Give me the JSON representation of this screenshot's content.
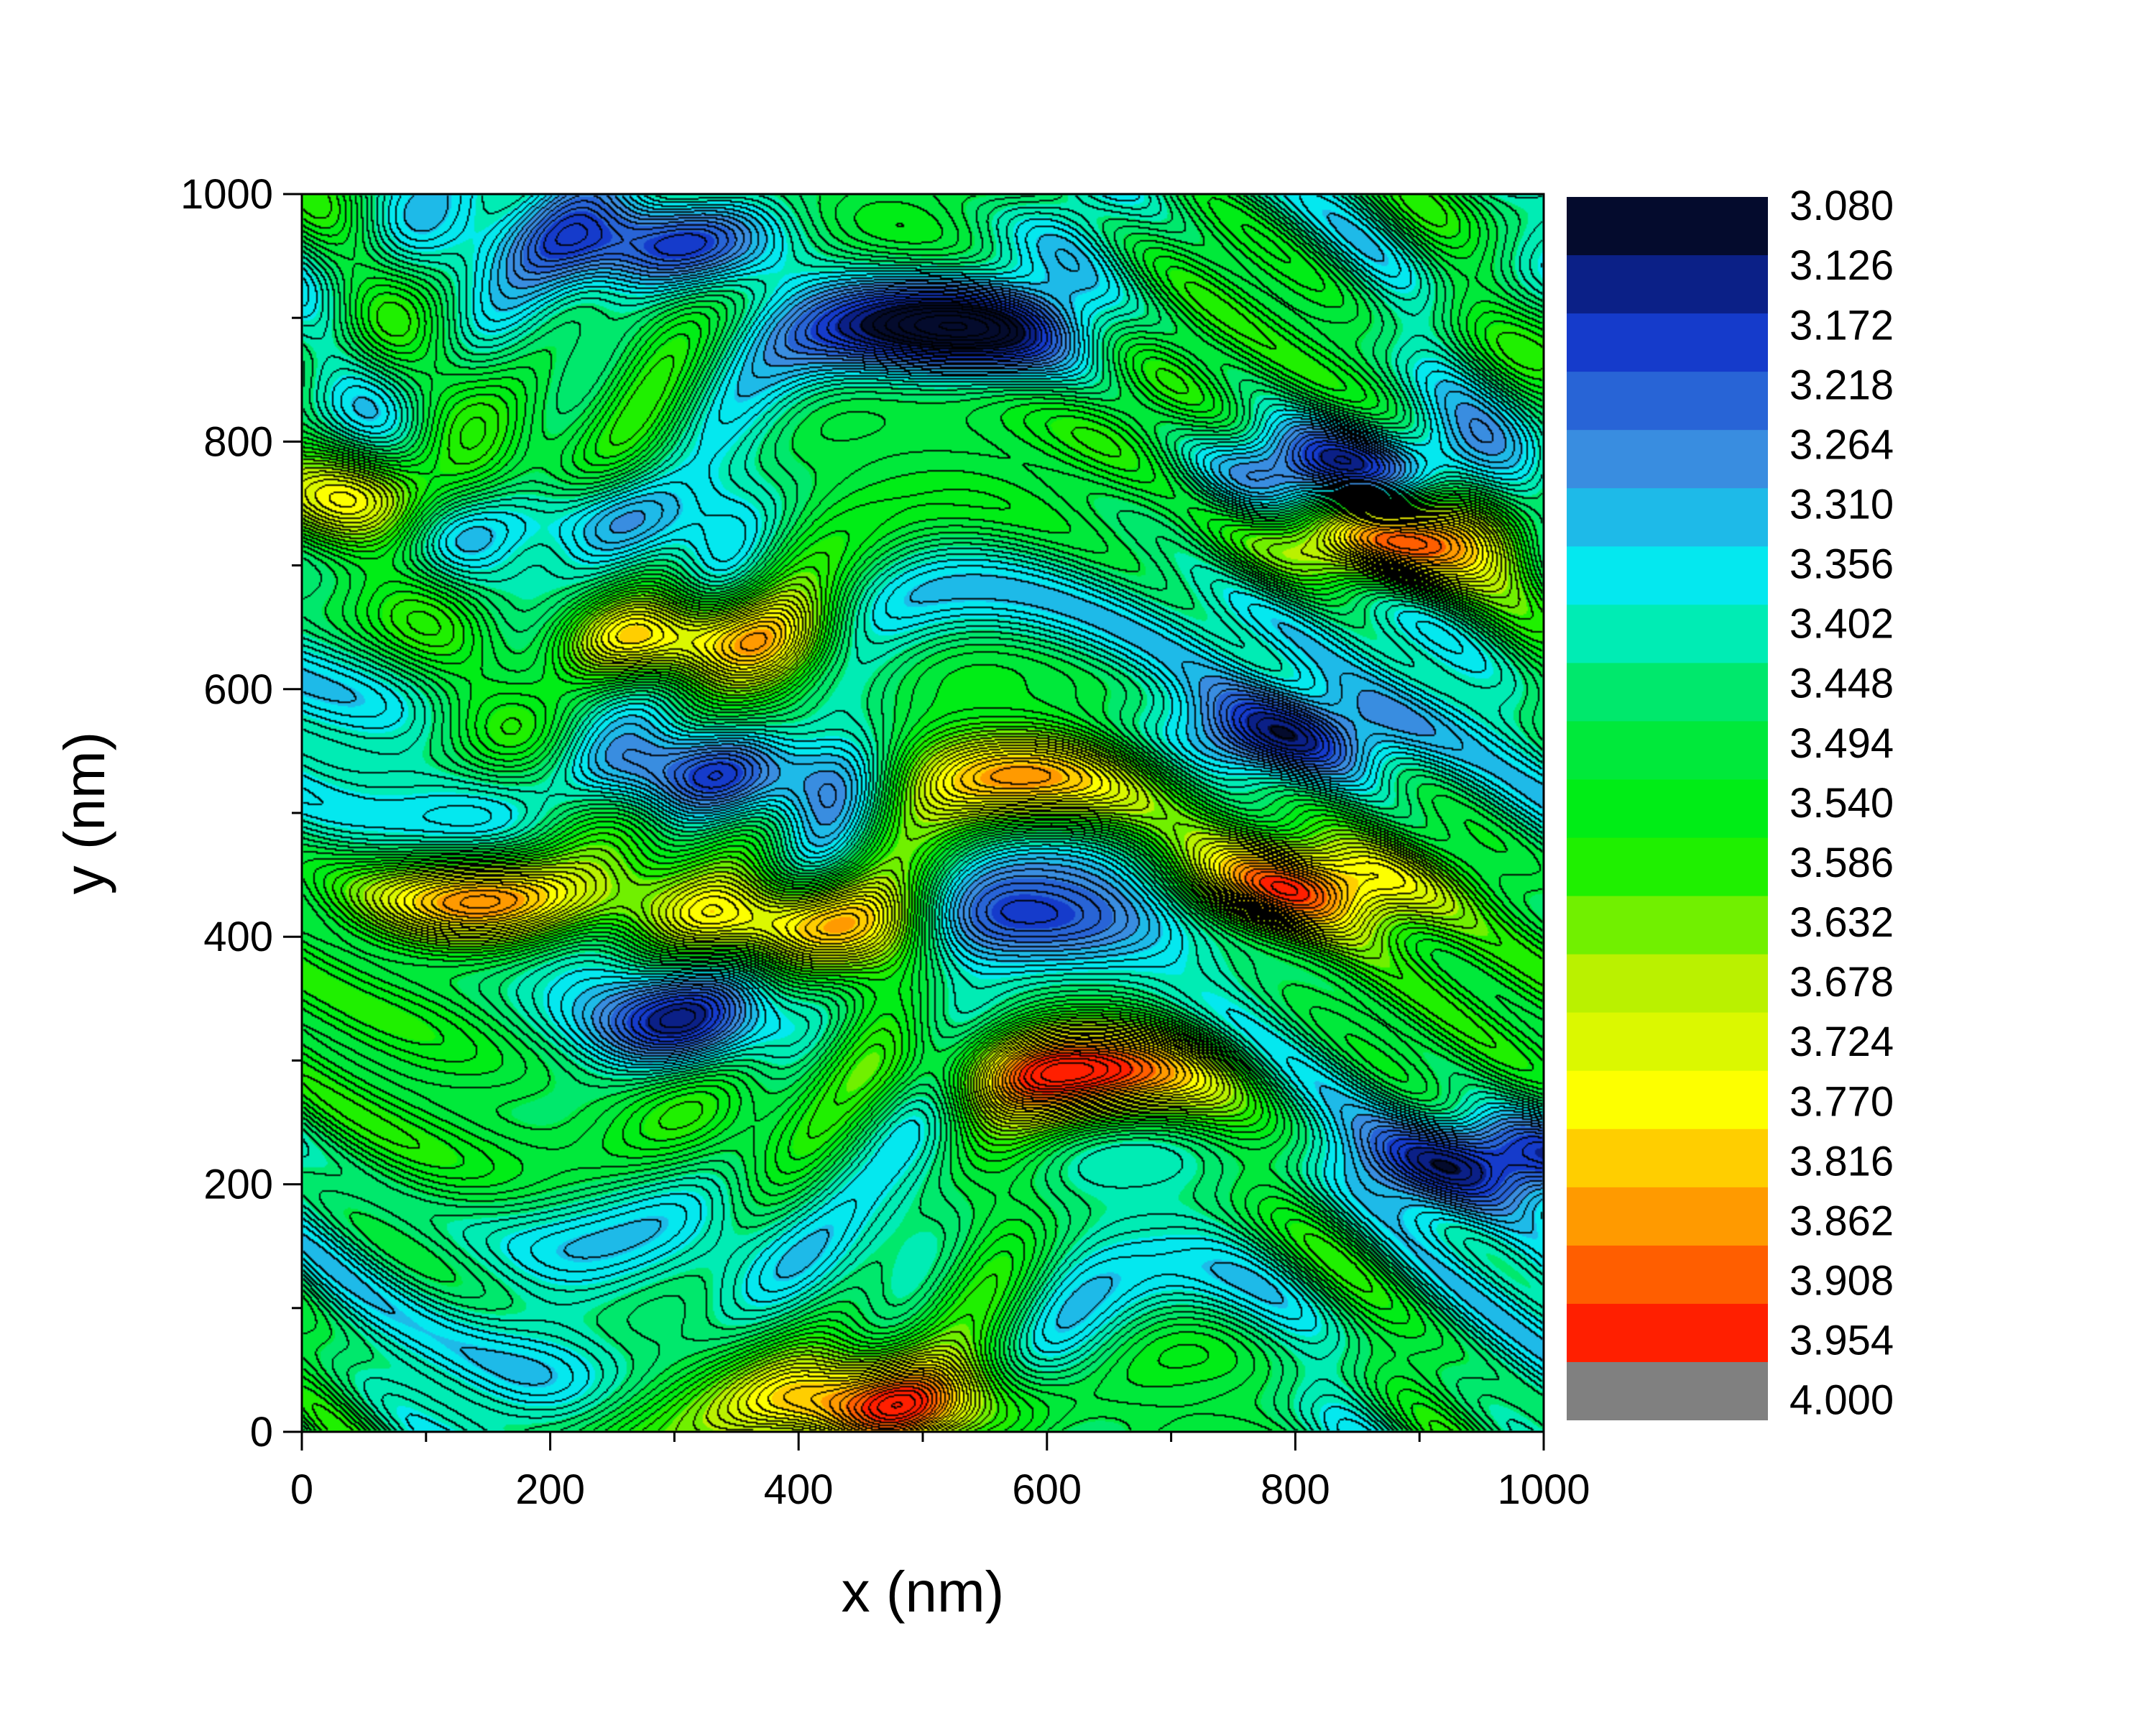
{
  "chart_data": {
    "type": "heatmap",
    "subtype": "filled contour map with contour lines",
    "xlabel": "x (nm)",
    "ylabel": "y (nm)",
    "xlim": [
      0,
      1000
    ],
    "ylim": [
      0,
      1000
    ],
    "x_ticks": [
      "0",
      "200",
      "400",
      "600",
      "800",
      "1000"
    ],
    "y_ticks": [
      "0",
      "200",
      "400",
      "600",
      "800",
      "1000"
    ],
    "x_tick_values": [
      0,
      200,
      400,
      600,
      800,
      1000
    ],
    "y_tick_values": [
      0,
      200,
      400,
      600,
      800,
      1000
    ],
    "colorbar": {
      "labels": [
        "3.080",
        "3.126",
        "3.172",
        "3.218",
        "3.264",
        "3.310",
        "3.356",
        "3.402",
        "3.448",
        "3.494",
        "3.540",
        "3.586",
        "3.632",
        "3.678",
        "3.724",
        "3.770",
        "3.816",
        "3.862",
        "3.908",
        "3.954",
        "4.000"
      ],
      "range": [
        3.08,
        4.0
      ],
      "colormap": [
        "#000000",
        "#1030c8",
        "#3a8ae0",
        "#00f0f0",
        "#00e650",
        "#00f000",
        "#b4f000",
        "#ffff00",
        "#ff8c00",
        "#ff0000"
      ],
      "end_color": "#808080"
    },
    "features": [
      {
        "kind": "high",
        "x": 870,
        "y": 720,
        "value": 4.0
      },
      {
        "kind": "high",
        "x": 300,
        "y": 640,
        "value": 3.95
      },
      {
        "kind": "high",
        "x": 160,
        "y": 430,
        "value": 3.95
      },
      {
        "kind": "high",
        "x": 400,
        "y": 410,
        "value": 3.95
      },
      {
        "kind": "high",
        "x": 620,
        "y": 290,
        "value": 3.95
      },
      {
        "kind": "high",
        "x": 470,
        "y": 20,
        "value": 3.95
      },
      {
        "kind": "high",
        "x": 800,
        "y": 440,
        "value": 3.9
      },
      {
        "kind": "high",
        "x": 90,
        "y": 750,
        "value": 3.8
      },
      {
        "kind": "high",
        "x": 580,
        "y": 530,
        "value": 3.85
      },
      {
        "kind": "low",
        "x": 330,
        "y": 530,
        "value": 3.15
      },
      {
        "kind": "low",
        "x": 850,
        "y": 780,
        "value": 3.15
      },
      {
        "kind": "low",
        "x": 520,
        "y": 890,
        "value": 3.15
      },
      {
        "kind": "low",
        "x": 300,
        "y": 960,
        "value": 3.15
      },
      {
        "kind": "low",
        "x": 780,
        "y": 560,
        "value": 3.2
      },
      {
        "kind": "low",
        "x": 600,
        "y": 410,
        "value": 3.2
      },
      {
        "kind": "low",
        "x": 270,
        "y": 330,
        "value": 3.2
      },
      {
        "kind": "low",
        "x": 960,
        "y": 220,
        "value": 3.15
      },
      {
        "kind": "low",
        "x": 200,
        "y": 740,
        "value": 3.2
      }
    ],
    "grid": false,
    "legend": "colorbar right of plot"
  }
}
